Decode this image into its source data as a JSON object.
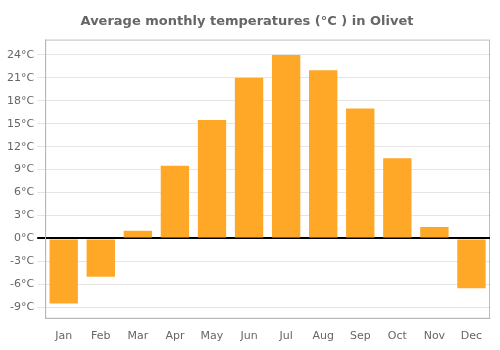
{
  "chart_data": {
    "type": "bar",
    "title": "Average monthly temperatures (°C ) in Olivet",
    "categories": [
      "Jan",
      "Feb",
      "Mar",
      "Apr",
      "May",
      "Jun",
      "Jul",
      "Aug",
      "Sep",
      "Oct",
      "Nov",
      "Dec"
    ],
    "values": [
      -8.5,
      -5.0,
      1.0,
      9.5,
      15.5,
      21.0,
      24.0,
      22.0,
      17.0,
      10.5,
      1.5,
      -6.5
    ],
    "color": "#FFA726",
    "ylim": [
      -10.5,
      26
    ],
    "yticks": [
      {
        "value": -9,
        "label": "-9°C"
      },
      {
        "value": -6,
        "label": "-6°C"
      },
      {
        "value": -3,
        "label": "-3°C"
      },
      {
        "value": 0,
        "label": "0°C"
      },
      {
        "value": 3,
        "label": "3°C"
      },
      {
        "value": 6,
        "label": "6°C"
      },
      {
        "value": 9,
        "label": "9°C"
      },
      {
        "value": 12,
        "label": "12°C"
      },
      {
        "value": 15,
        "label": "15°C"
      },
      {
        "value": 18,
        "label": "18°C"
      },
      {
        "value": 21,
        "label": "21°C"
      },
      {
        "value": 24,
        "label": "24°C"
      }
    ],
    "grid": true
  }
}
